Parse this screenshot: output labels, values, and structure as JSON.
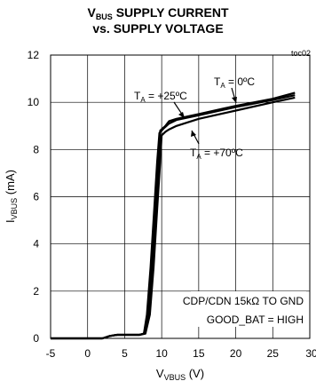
{
  "chart_data": {
    "type": "line",
    "title": {
      "line1_main": "V",
      "line1_sub": "BUS",
      "line1_rest": " SUPPLY CURRENT",
      "line2": "vs. SUPPLY VOLTAGE"
    },
    "figure_id": "toc02",
    "xlabel": {
      "main": "V",
      "sub": "VBUS",
      "rest": " (V)"
    },
    "ylabel": {
      "main": "I",
      "sub": "VBUS",
      "rest": " (mA)"
    },
    "xlim": [
      -5,
      30
    ],
    "ylim": [
      0,
      12
    ],
    "xticks": [
      "-5",
      "0",
      "5",
      "10",
      "15",
      "20",
      "25",
      "30"
    ],
    "yticks": [
      "0",
      "2",
      "4",
      "6",
      "8",
      "10",
      "12"
    ],
    "grid": true,
    "series": [
      {
        "name": "TA = +25°C",
        "points": [
          [
            -5,
            0
          ],
          [
            2,
            0
          ],
          [
            3,
            0.1
          ],
          [
            4,
            0.15
          ],
          [
            5,
            0.15
          ],
          [
            6,
            0.15
          ],
          [
            7,
            0.15
          ],
          [
            7.6,
            0.2
          ],
          [
            8,
            1
          ],
          [
            8.5,
            3
          ],
          [
            9,
            5.5
          ],
          [
            9.4,
            7.5
          ],
          [
            9.7,
            8.7
          ],
          [
            10.3,
            8.9
          ],
          [
            11,
            9.1
          ],
          [
            12,
            9.25
          ],
          [
            15,
            9.45
          ],
          [
            20,
            9.8
          ],
          [
            25,
            10.1
          ],
          [
            28,
            10.3
          ]
        ]
      },
      {
        "name": "TA = 0°C",
        "points": [
          [
            -5,
            0
          ],
          [
            2,
            0
          ],
          [
            3,
            0.1
          ],
          [
            4,
            0.15
          ],
          [
            5,
            0.15
          ],
          [
            6,
            0.15
          ],
          [
            7,
            0.15
          ],
          [
            7.6,
            0.2
          ],
          [
            8.2,
            1
          ],
          [
            8.7,
            3
          ],
          [
            9.2,
            5.5
          ],
          [
            9.6,
            7.5
          ],
          [
            9.8,
            8.8
          ],
          [
            10.5,
            9.0
          ],
          [
            11,
            9.2
          ],
          [
            12,
            9.3
          ],
          [
            15,
            9.5
          ],
          [
            20,
            9.85
          ],
          [
            25,
            10.15
          ],
          [
            28,
            10.4
          ]
        ]
      },
      {
        "name": "TA = +70°C",
        "points": [
          [
            -5,
            0
          ],
          [
            2,
            0
          ],
          [
            3,
            0.1
          ],
          [
            4,
            0.15
          ],
          [
            5,
            0.15
          ],
          [
            6,
            0.15
          ],
          [
            7,
            0.15
          ],
          [
            7.8,
            0.2
          ],
          [
            8.4,
            1
          ],
          [
            8.9,
            3
          ],
          [
            9.4,
            5.5
          ],
          [
            9.8,
            7.5
          ],
          [
            10.0,
            8.6
          ],
          [
            10.5,
            8.75
          ],
          [
            11,
            8.85
          ],
          [
            12,
            9.0
          ],
          [
            15,
            9.3
          ],
          [
            20,
            9.65
          ],
          [
            25,
            10.0
          ],
          [
            28,
            10.2
          ]
        ]
      }
    ],
    "annotations": [
      {
        "main": "T",
        "sub": "A",
        "rest": " = +25ºC"
      },
      {
        "main": "T",
        "sub": "A",
        "rest": " = 0ºC"
      },
      {
        "main": "T",
        "sub": "A",
        "rest": " = +70ºC"
      }
    ],
    "notes": [
      "CDP/CDN 15kΩ TO GND",
      "GOOD_BAT = HIGH"
    ]
  }
}
